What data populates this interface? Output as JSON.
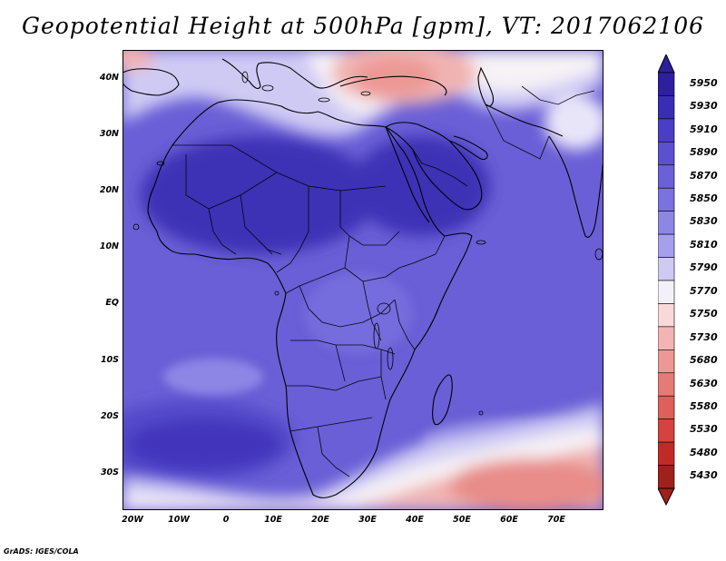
{
  "title": "Geopotential Height at 500hPa [gpm], VT: 2017062106",
  "credit": "GrADS: IGES/COLA",
  "axes": {
    "lat_labels": [
      "40N",
      "30N",
      "20N",
      "10N",
      "EQ",
      "10S",
      "20S",
      "30S"
    ],
    "lon_labels": [
      "20W",
      "10W",
      "0",
      "10E",
      "20E",
      "30E",
      "40E",
      "50E",
      "60E",
      "70E"
    ],
    "lon_range": [
      -22,
      80
    ],
    "lat_range": [
      -37,
      45
    ]
  },
  "colorbar": {
    "levels": [
      "5950",
      "5930",
      "5910",
      "5890",
      "5870",
      "5850",
      "5830",
      "5810",
      "5790",
      "5770",
      "5750",
      "5730",
      "5680",
      "5630",
      "5580",
      "5530",
      "5480",
      "5430"
    ],
    "colors": [
      "#2d1f9e",
      "#3a2db5",
      "#4a3ec4",
      "#5b51cf",
      "#6a60d8",
      "#7b72df",
      "#8d86e5",
      "#a6a0ec",
      "#cfcaf4",
      "#f4f0f8",
      "#f8d8d8",
      "#f2b5b3",
      "#ec9895",
      "#e57b77",
      "#df5f5b",
      "#d4433f",
      "#c02b27",
      "#a0201c"
    ]
  },
  "map_colors": {
    "deep": "#3d30b5",
    "base": "#6a5fd6",
    "mid": "#7e76e0",
    "light": "#a9a2ec",
    "pale": "#d6d3f5",
    "white": "#f6f2f6",
    "pink": "#f1b3b1",
    "red": "#e88d89",
    "land_outline": "#000000"
  }
}
